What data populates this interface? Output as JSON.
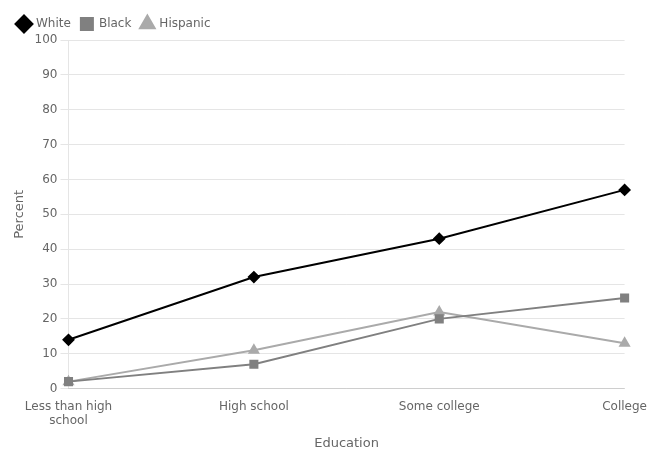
{
  "chart_data": {
    "type": "line",
    "categories": [
      "Less than high\nschool",
      "High school",
      "Some college",
      "College"
    ],
    "series": [
      {
        "name": "White",
        "color": "#000000",
        "marker": "diamond",
        "values": [
          14,
          32,
          43,
          57
        ]
      },
      {
        "name": "Black",
        "color": "#808080",
        "marker": "square",
        "values": [
          2,
          7,
          20,
          26
        ]
      },
      {
        "name": "Hispanic",
        "color": "#aaaaaa",
        "marker": "triangle",
        "values": [
          2,
          11,
          22,
          13
        ]
      }
    ],
    "ylabel": "Percent",
    "xlabel": "Education",
    "ylim": [
      0,
      100
    ],
    "yticks": [
      0,
      10,
      20,
      30,
      40,
      50,
      60,
      70,
      80,
      90,
      100
    ],
    "grid": "y",
    "legend": "upper left"
  }
}
